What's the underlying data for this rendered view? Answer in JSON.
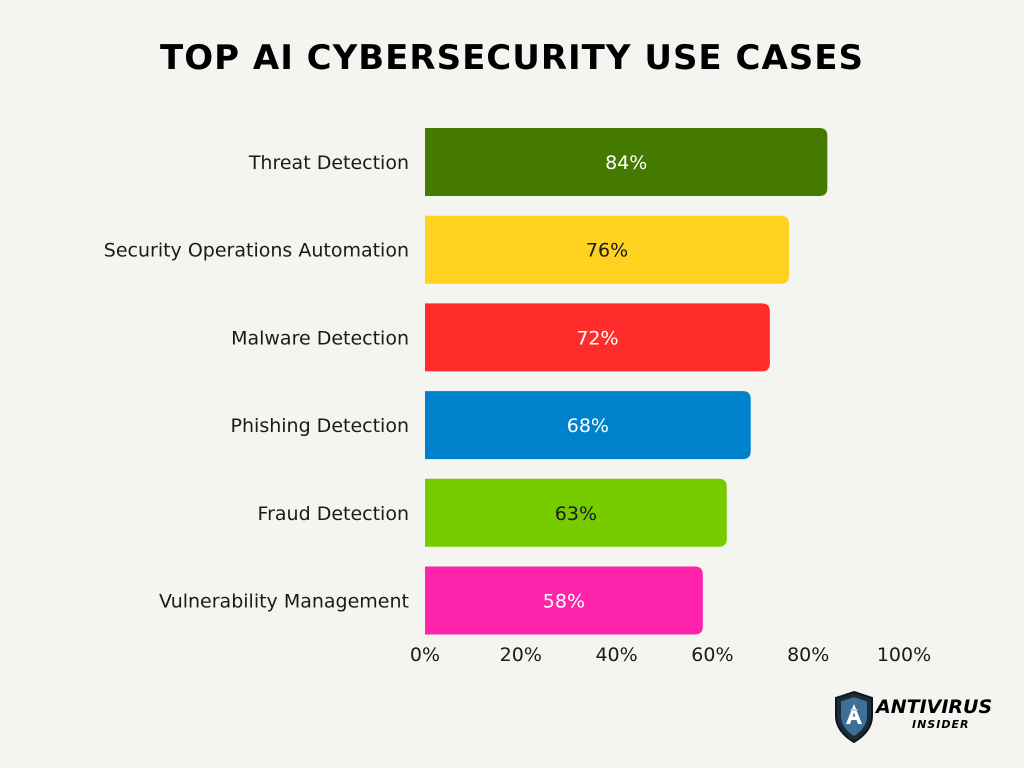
{
  "chart_data": {
    "type": "bar",
    "orientation": "horizontal",
    "title": "TOP AI CYBERSECURITY USE CASES",
    "categories": [
      "Threat Detection",
      "Security Operations Automation",
      "Malware Detection",
      "Phishing Detection",
      "Fraud Detection",
      "Vulnerability Management"
    ],
    "values": [
      84,
      76,
      72,
      68,
      63,
      58
    ],
    "data_labels": [
      "84%",
      "76%",
      "72%",
      "68%",
      "63%",
      "58%"
    ],
    "colors": [
      "#457a00",
      "#ffd21f",
      "#ff2c2c",
      "#0081cc",
      "#77cc00",
      "#ff24ac"
    ],
    "label_colors": [
      "#ffffff",
      "#1a1a1a",
      "#ffffff",
      "#ffffff",
      "#1a1a1a",
      "#ffffff"
    ],
    "xlim": [
      0,
      100
    ],
    "x_ticks": [
      0,
      20,
      40,
      60,
      80,
      100
    ],
    "x_tick_labels": [
      "0%",
      "20%",
      "40%",
      "60%",
      "80%",
      "100%"
    ],
    "grid": false,
    "legend": "none"
  },
  "branding": {
    "logo_line1": "ANTIVIRUS",
    "logo_line2": "INSIDER",
    "logo_icon": "shield-icon"
  }
}
